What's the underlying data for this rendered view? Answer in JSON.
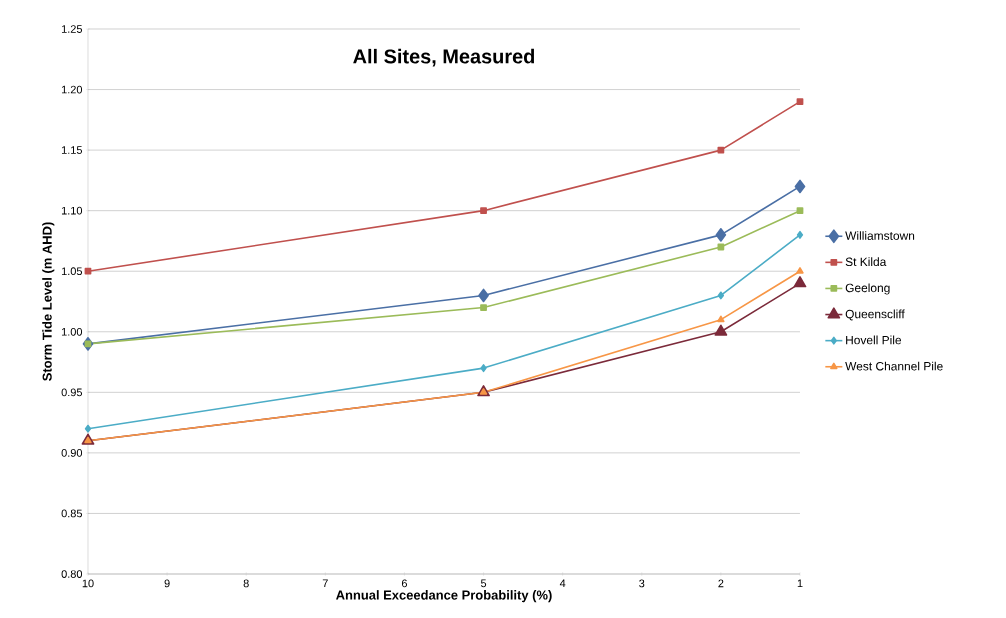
{
  "chart_data": {
    "type": "line",
    "title": "All Sites, Measured",
    "xlabel": "Annual Exceedance Probability (%)",
    "ylabel": "Storm Tide Level (m AHD)",
    "x": [
      10,
      5,
      2,
      1
    ],
    "series": [
      {
        "name": "Williamstown",
        "color": "#4a6fa5",
        "marker": "diamond",
        "values": [
          0.99,
          1.03,
          1.08,
          1.12
        ]
      },
      {
        "name": "St Kilda",
        "color": "#c0504d",
        "marker": "square",
        "values": [
          1.05,
          1.1,
          1.15,
          1.19
        ]
      },
      {
        "name": "Geelong",
        "color": "#9bbb59",
        "marker": "square",
        "values": [
          0.99,
          1.02,
          1.07,
          1.1
        ]
      },
      {
        "name": "Queenscliff",
        "color": "#7b2a3a",
        "marker": "triangle",
        "values": [
          0.91,
          0.95,
          1.0,
          1.04
        ]
      },
      {
        "name": "Hovell Pile",
        "color": "#4bacc6",
        "marker": "diamond",
        "values": [
          0.92,
          0.97,
          1.03,
          1.08
        ]
      },
      {
        "name": "West Channel Pile",
        "color": "#f79646",
        "marker": "triangle",
        "values": [
          0.91,
          0.95,
          1.01,
          1.05
        ]
      }
    ],
    "xlim": [
      10,
      1
    ],
    "xticks": [
      10,
      9,
      8,
      7,
      6,
      5,
      4,
      3,
      2,
      1
    ],
    "ylim": [
      0.8,
      1.25
    ],
    "yticks": [
      {
        "value": 0.8,
        "label": "0.80"
      },
      {
        "value": 0.85,
        "label": "0.85"
      },
      {
        "value": 0.9,
        "label": "0.90"
      },
      {
        "value": 0.95,
        "label": "0.95"
      },
      {
        "value": 1.0,
        "label": "1.00"
      },
      {
        "value": 1.05,
        "label": "1.05"
      },
      {
        "value": 1.1,
        "label": "1.10"
      },
      {
        "value": 1.15,
        "label": "1.15"
      },
      {
        "value": 1.2,
        "label": "1.20"
      },
      {
        "value": 1.25,
        "label": "1.25"
      }
    ],
    "grid": "y",
    "legend": "right",
    "line_style": "solid"
  }
}
